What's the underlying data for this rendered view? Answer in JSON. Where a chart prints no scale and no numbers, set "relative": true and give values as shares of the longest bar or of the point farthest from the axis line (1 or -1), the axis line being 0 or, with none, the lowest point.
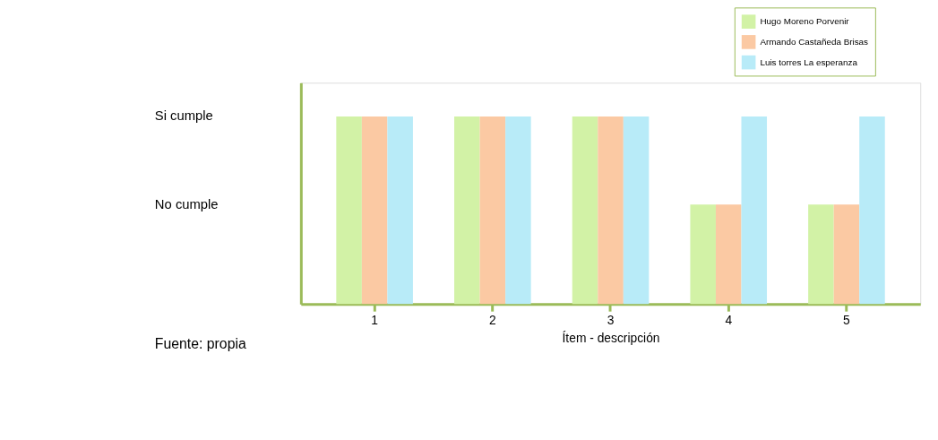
{
  "chart_data": {
    "type": "bar",
    "xlabel": "Ítem - descripción",
    "relative": true,
    "categories": [
      "1",
      "2",
      "3",
      "4",
      "5"
    ],
    "series": [
      {
        "name": "Hugo Moreno Porvenir",
        "color": "#d2f2a6",
        "values": [
          1,
          1,
          1,
          0.53,
          0.53
        ]
      },
      {
        "name": "Armando Castañeda Brisas",
        "color": "#fbc9a3",
        "values": [
          1,
          1,
          1,
          0.53,
          0.53
        ]
      },
      {
        "name": "Luis torres La esperanza",
        "color": "#b8ebf8",
        "values": [
          1,
          1,
          1,
          1,
          1
        ]
      }
    ],
    "grid": false,
    "legend": "top right",
    "annotations": [
      "Si cumple",
      "No cumple",
      "Fuente: propia"
    ]
  }
}
